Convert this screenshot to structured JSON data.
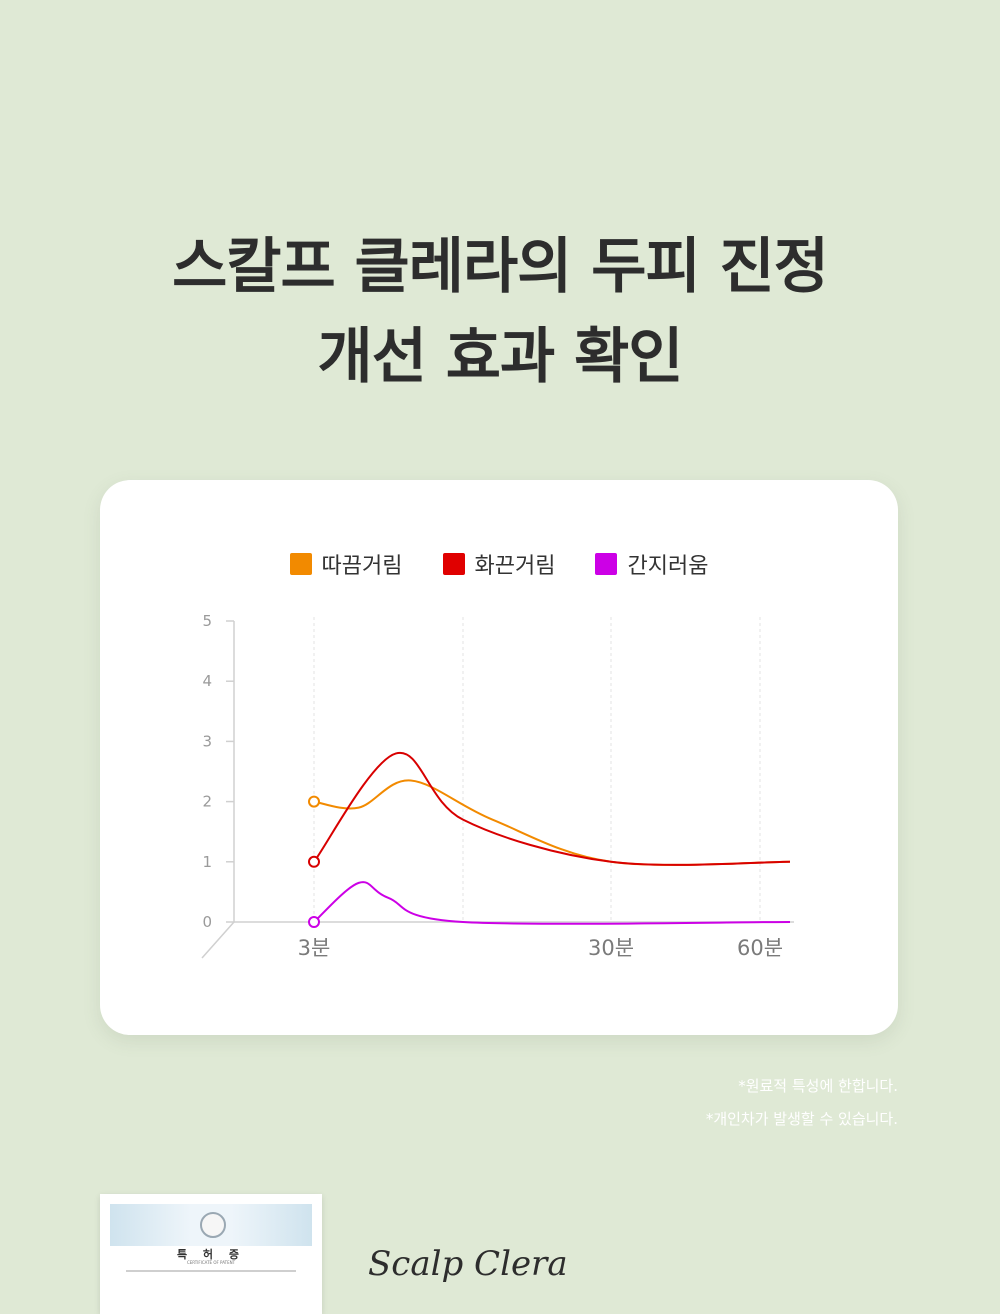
{
  "headline": {
    "line1": "스칼프 클레라의 두피 진정",
    "line2": "개선 효과 확인"
  },
  "chart_data": {
    "type": "line",
    "x_categories": [
      "3분",
      "",
      "30분",
      "60분"
    ],
    "yticks": [
      "0",
      "1",
      "2",
      "3",
      "4",
      "5"
    ],
    "ylim": [
      0,
      5
    ],
    "grid": "vertical dotted",
    "legend_position": "top-center",
    "series": [
      {
        "name": "따끔거림",
        "color": "#f28a00",
        "points": [
          [
            0,
            2.0
          ],
          [
            0.3,
            1.9
          ],
          [
            0.65,
            2.35
          ],
          [
            1.2,
            1.7
          ],
          [
            2.0,
            1.0
          ],
          [
            3.0,
            1.0
          ]
        ]
      },
      {
        "name": "화끈거림",
        "color": "#d80000",
        "points": [
          [
            0,
            1.0
          ],
          [
            0.55,
            2.8
          ],
          [
            1.0,
            1.7
          ],
          [
            2.0,
            1.0
          ],
          [
            3.0,
            1.0
          ]
        ]
      },
      {
        "name": "간지러움",
        "color": "#cc00e6",
        "points": [
          [
            0,
            0.0
          ],
          [
            0.3,
            0.65
          ],
          [
            0.5,
            0.4
          ],
          [
            1.0,
            0.0
          ],
          [
            3.0,
            0.0
          ]
        ]
      }
    ]
  },
  "notes": {
    "line1": "*원료적 특성에 한합니다.",
    "line2": "*개인차가 발생할 수 있습니다."
  },
  "certificate": {
    "title": "특 허 증",
    "subtitle": "CERTIFICATE OF PATENT"
  },
  "brand": {
    "script": "Scalp Clera"
  }
}
